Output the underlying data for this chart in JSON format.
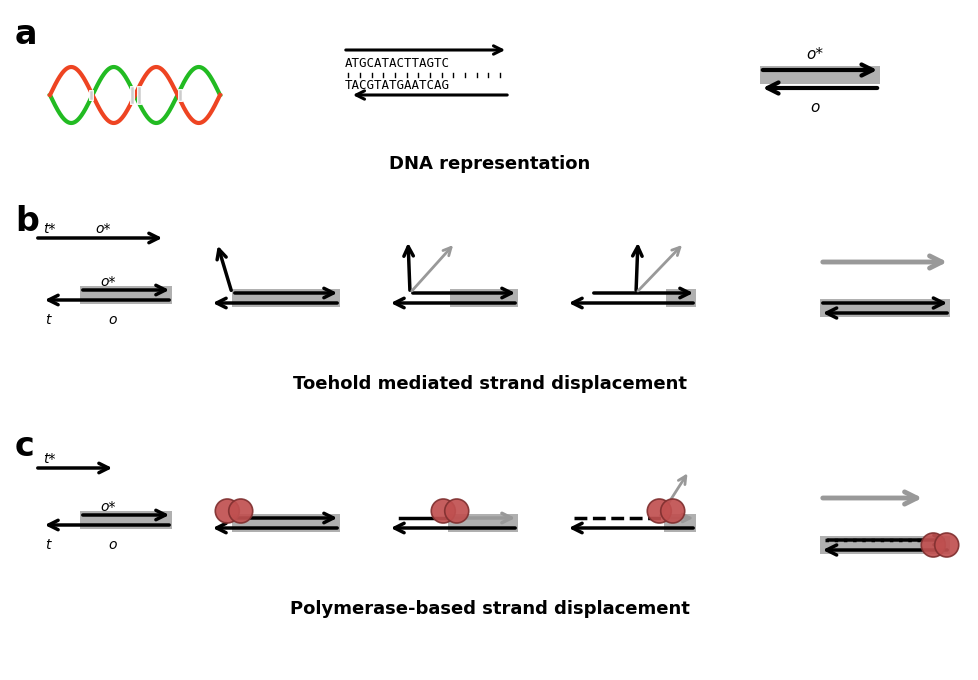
{
  "title_a": "DNA representation",
  "title_b": "Toehold mediated strand displacement",
  "title_c": "Polymerase-based strand displacement",
  "label_a": "a",
  "label_b": "b",
  "label_c": "c",
  "dna_seq_top": "ATGCATACTTAGTC",
  "dna_seq_bot": "TACGTATGAATCAG",
  "black": "#000000",
  "gray": "#999999",
  "strand_gray": "#b0b0b0",
  "poly_color": "#c05050",
  "bg": "#ffffff"
}
